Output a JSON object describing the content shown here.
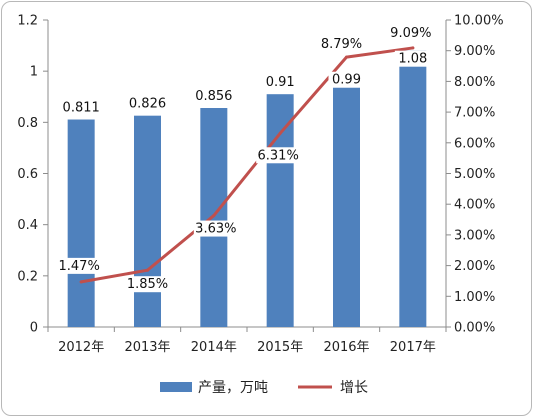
{
  "chart_data": {
    "type": "bar+line",
    "categories": [
      "2012年",
      "2013年",
      "2014年",
      "2015年",
      "2016年",
      "2017年"
    ],
    "series": [
      {
        "name": "产量，万吨",
        "type": "bar",
        "axis": "left",
        "color": "#4f81bd",
        "values": [
          0.811,
          0.826,
          0.856,
          0.91,
          0.99,
          1.08
        ],
        "labels": [
          "0.811",
          "0.826",
          "0.856",
          "0.91",
          "0.99",
          "1.08"
        ]
      },
      {
        "name": "增长",
        "type": "line",
        "axis": "right",
        "color": "#c0504d",
        "values": [
          1.47,
          1.85,
          3.63,
          6.31,
          8.79,
          9.09
        ],
        "labels": [
          "1.47%",
          "1.85%",
          "3.63%",
          "6.31%",
          "8.79%",
          "9.09%"
        ]
      }
    ],
    "left_axis": {
      "ylim": [
        0,
        1.2
      ],
      "ticks": [
        0,
        0.2,
        0.4,
        0.6,
        0.8,
        1,
        1.2
      ],
      "tick_labels": [
        "0",
        "0.2",
        "0.4",
        "0.6",
        "0.8",
        "1",
        "1.2"
      ]
    },
    "right_axis": {
      "ylim": [
        0,
        10
      ],
      "ticks": [
        0,
        1,
        2,
        3,
        4,
        5,
        6,
        7,
        8,
        9,
        10
      ],
      "tick_labels": [
        "0.00%",
        "1.00%",
        "2.00%",
        "3.00%",
        "4.00%",
        "5.00%",
        "6.00%",
        "7.00%",
        "8.00%",
        "9.00%",
        "10.00%"
      ]
    },
    "grid": false,
    "legend_position": "bottom"
  }
}
